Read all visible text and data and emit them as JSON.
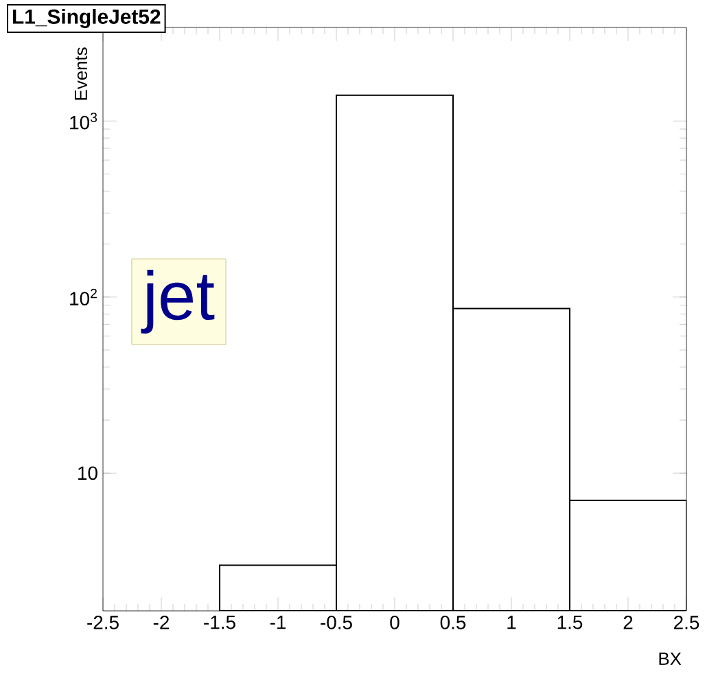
{
  "chart_data": {
    "type": "histogram",
    "title": "L1_SingleJet52",
    "xlabel": "BX",
    "ylabel": "Events",
    "bins": [
      -1.5,
      -0.5,
      0.5,
      1.5,
      2.5
    ],
    "values": [
      3,
      1400,
      86,
      7
    ],
    "color": "#000000",
    "xlim": [
      -2.5,
      2.5
    ],
    "ylim": [
      1.65,
      3400
    ],
    "xticks": [
      -2.5,
      -2,
      -1.5,
      -1,
      -0.5,
      0,
      0.5,
      1,
      1.5,
      2,
      2.5
    ],
    "yticks": [
      10,
      {
        "value": 100,
        "label": "10$^{2}$"
      },
      {
        "value": 1000,
        "label": "10$^{3}$"
      }
    ],
    "log": "y",
    "grid": false,
    "annotations": [
      "jet"
    ]
  }
}
